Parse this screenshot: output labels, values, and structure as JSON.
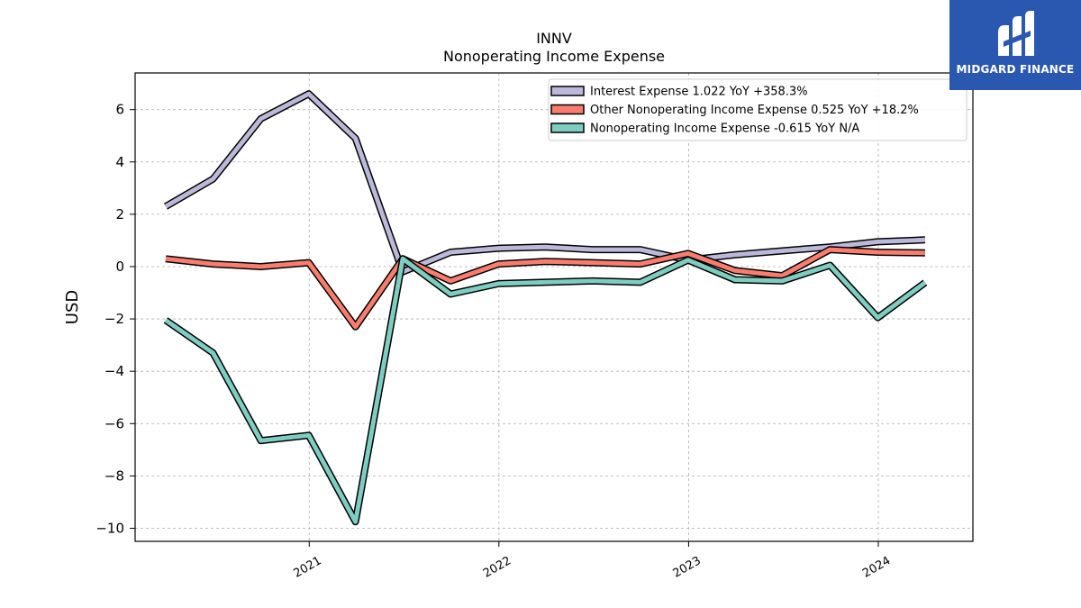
{
  "chart_data": {
    "type": "line",
    "title": "INNV",
    "subtitle": "Nonoperating Income Expense",
    "xlabel": "",
    "ylabel": "USD",
    "ylim": [
      -10.5,
      7.4
    ],
    "yticks": [
      6,
      4,
      2,
      0,
      -2,
      -4,
      -6,
      -8,
      -10
    ],
    "yticklabels": [
      "6",
      "4",
      "2",
      "0",
      "−2",
      "−4",
      "−6",
      "−8",
      "−10"
    ],
    "xticks": [
      "2021",
      "2022",
      "2023",
      "2024"
    ],
    "grid": true,
    "legend_position": "top-right",
    "x": [
      "2020-03-31",
      "2020-06-30",
      "2020-09-30",
      "2020-12-31",
      "2021-03-31",
      "2021-06-30",
      "2021-09-30",
      "2021-12-31",
      "2022-03-31",
      "2022-06-30",
      "2022-09-30",
      "2022-12-31",
      "2023-03-31",
      "2023-06-30",
      "2023-09-30",
      "2023-12-31",
      "2024-03-31"
    ],
    "series": [
      {
        "name": "Interest Expense  1.022 YoY +358.3%",
        "color": "#bcb8d9",
        "values": [
          2.3,
          3.35,
          5.65,
          6.6,
          4.9,
          -0.2,
          0.55,
          0.7,
          0.75,
          0.65,
          0.65,
          0.25,
          0.45,
          0.6,
          0.75,
          0.95,
          1.02
        ]
      },
      {
        "name": "Other Nonoperating Income Expense  0.525 YoY +18.2%",
        "color": "#f97d6e",
        "values": [
          0.3,
          0.1,
          0.0,
          0.15,
          -2.3,
          0.3,
          -0.55,
          0.1,
          0.2,
          0.15,
          0.1,
          0.5,
          -0.15,
          -0.35,
          0.65,
          0.55,
          0.525
        ]
      },
      {
        "name": "Nonoperating Income Expense  -0.615 YoY N/A",
        "color": "#7dcdc0",
        "values": [
          -2.05,
          -3.3,
          -6.65,
          -6.45,
          -9.75,
          0.3,
          -1.05,
          -0.65,
          -0.6,
          -0.55,
          -0.6,
          0.25,
          -0.5,
          -0.55,
          0.05,
          -1.95,
          -0.615
        ]
      }
    ]
  },
  "logo": {
    "text": "MIDGARD FINANCE",
    "background": "#2a58b0",
    "icon": "midgard-logo-icon"
  }
}
